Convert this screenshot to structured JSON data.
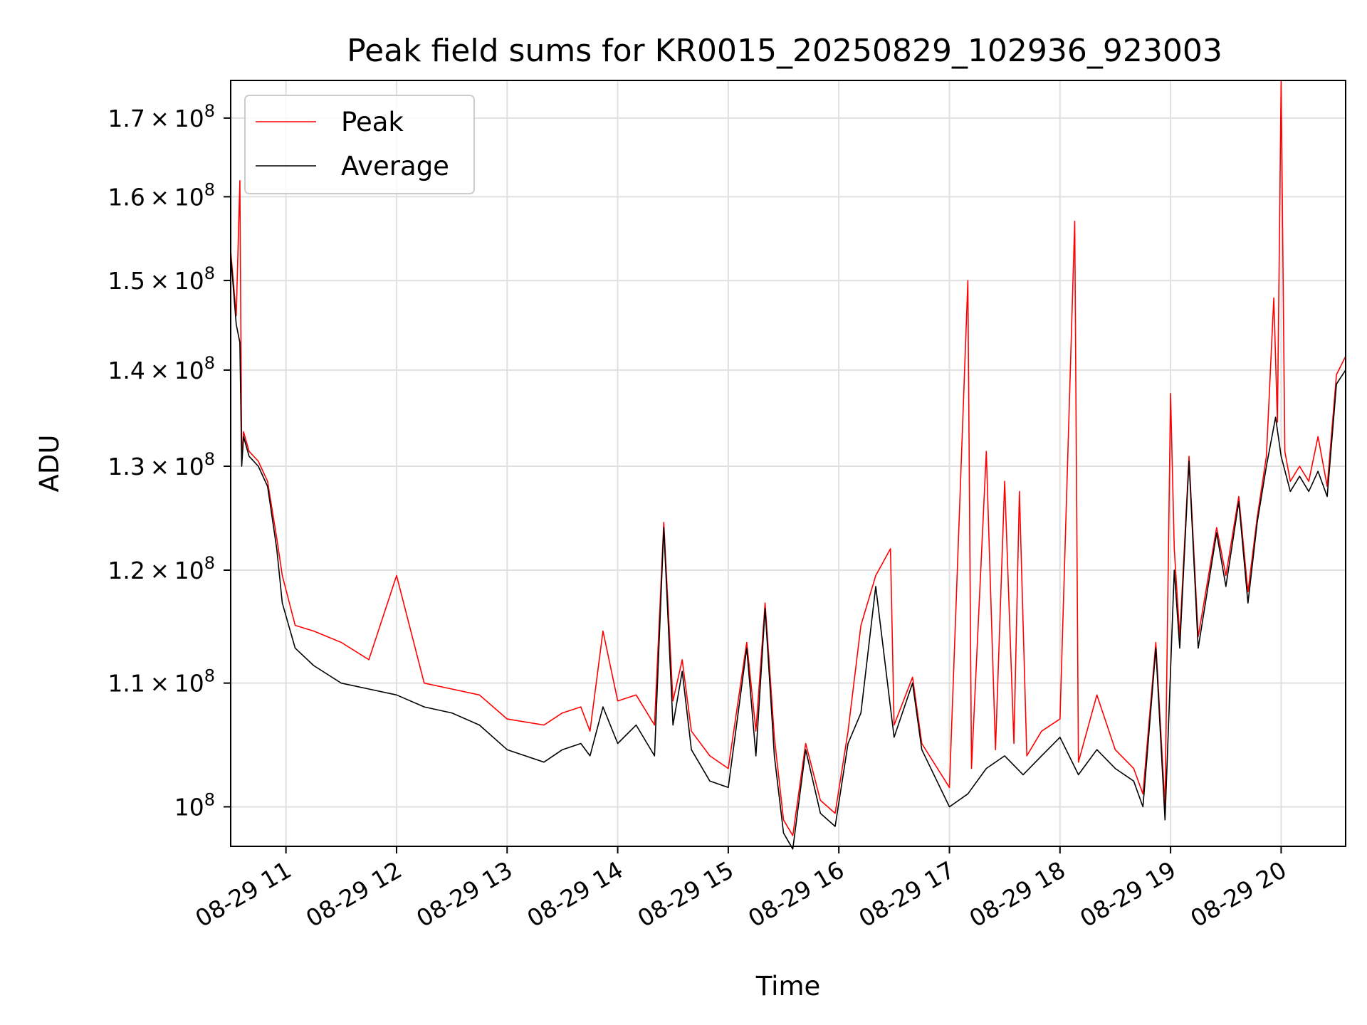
{
  "chart_data": {
    "type": "line",
    "title": "Peak field sums for KR0015_20250829_102936_923003",
    "xlabel": "Time",
    "ylabel": "ADU",
    "y_scale": "log",
    "grid": true,
    "legend_placement": "top-left",
    "xlim": [
      "2025-08-29 10:30",
      "2025-08-29 20:35"
    ],
    "ylim": [
      97000000,
      175000000
    ],
    "x_tick_labels": [
      "08-29 11",
      "08-29 12",
      "08-29 13",
      "08-29 14",
      "08-29 15",
      "08-29 16",
      "08-29 17",
      "08-29 18",
      "08-29 19",
      "08-29 20"
    ],
    "x_ticks": [
      "2025-08-29 11:00",
      "2025-08-29 12:00",
      "2025-08-29 13:00",
      "2025-08-29 14:00",
      "2025-08-29 15:00",
      "2025-08-29 16:00",
      "2025-08-29 17:00",
      "2025-08-29 18:00",
      "2025-08-29 19:00",
      "2025-08-29 20:00"
    ],
    "y_ticks": [
      100000000,
      110000000,
      120000000,
      130000000,
      140000000,
      150000000,
      160000000,
      170000000
    ],
    "y_tick_labels": [
      {
        "mantissa": "",
        "exponent": "8"
      },
      {
        "mantissa": "1.1",
        "exponent": "8"
      },
      {
        "mantissa": "1.2",
        "exponent": "8"
      },
      {
        "mantissa": "1.3",
        "exponent": "8"
      },
      {
        "mantissa": "1.4",
        "exponent": "8"
      },
      {
        "mantissa": "1.5",
        "exponent": "8"
      },
      {
        "mantissa": "1.6",
        "exponent": "8"
      },
      {
        "mantissa": "1.7",
        "exponent": "8"
      }
    ],
    "series": [
      {
        "name": "Average",
        "color": "#000000",
        "points": [
          [
            "2025-08-29 10:30",
            153000000
          ],
          [
            "2025-08-29 10:33",
            145000000
          ],
          [
            "2025-08-29 10:35",
            143000000
          ],
          [
            "2025-08-29 10:36",
            130000000
          ],
          [
            "2025-08-29 10:37",
            133000000
          ],
          [
            "2025-08-29 10:40",
            131000000
          ],
          [
            "2025-08-29 10:45",
            130000000
          ],
          [
            "2025-08-29 10:50",
            128000000
          ],
          [
            "2025-08-29 10:55",
            122000000
          ],
          [
            "2025-08-29 10:58",
            117000000
          ],
          [
            "2025-08-29 11:05",
            113000000
          ],
          [
            "2025-08-29 11:15",
            111500000
          ],
          [
            "2025-08-29 11:30",
            110000000
          ],
          [
            "2025-08-29 11:45",
            109500000
          ],
          [
            "2025-08-29 12:00",
            109000000
          ],
          [
            "2025-08-29 12:15",
            108000000
          ],
          [
            "2025-08-29 12:30",
            107500000
          ],
          [
            "2025-08-29 12:45",
            106500000
          ],
          [
            "2025-08-29 13:00",
            104500000
          ],
          [
            "2025-08-29 13:20",
            103500000
          ],
          [
            "2025-08-29 13:30",
            104500000
          ],
          [
            "2025-08-29 13:40",
            105000000
          ],
          [
            "2025-08-29 13:45",
            104000000
          ],
          [
            "2025-08-29 13:52",
            108000000
          ],
          [
            "2025-08-29 14:00",
            105000000
          ],
          [
            "2025-08-29 14:10",
            106500000
          ],
          [
            "2025-08-29 14:20",
            104000000
          ],
          [
            "2025-08-29 14:25",
            124000000
          ],
          [
            "2025-08-29 14:30",
            106500000
          ],
          [
            "2025-08-29 14:35",
            111000000
          ],
          [
            "2025-08-29 14:40",
            104500000
          ],
          [
            "2025-08-29 14:50",
            102000000
          ],
          [
            "2025-08-29 15:00",
            101500000
          ],
          [
            "2025-08-29 15:10",
            113000000
          ],
          [
            "2025-08-29 15:15",
            104000000
          ],
          [
            "2025-08-29 15:20",
            116500000
          ],
          [
            "2025-08-29 15:25",
            104000000
          ],
          [
            "2025-08-29 15:30",
            98000000
          ],
          [
            "2025-08-29 15:35",
            96800000
          ],
          [
            "2025-08-29 15:42",
            104500000
          ],
          [
            "2025-08-29 15:50",
            99500000
          ],
          [
            "2025-08-29 15:58",
            98500000
          ],
          [
            "2025-08-29 16:05",
            105000000
          ],
          [
            "2025-08-29 16:12",
            107500000
          ],
          [
            "2025-08-29 16:20",
            118500000
          ],
          [
            "2025-08-29 16:30",
            105500000
          ],
          [
            "2025-08-29 16:40",
            110000000
          ],
          [
            "2025-08-29 16:45",
            104500000
          ],
          [
            "2025-08-29 17:00",
            100000000
          ],
          [
            "2025-08-29 17:10",
            101000000
          ],
          [
            "2025-08-29 17:20",
            103000000
          ],
          [
            "2025-08-29 17:30",
            104000000
          ],
          [
            "2025-08-29 17:40",
            102500000
          ],
          [
            "2025-08-29 17:50",
            104000000
          ],
          [
            "2025-08-29 18:00",
            105500000
          ],
          [
            "2025-08-29 18:10",
            102500000
          ],
          [
            "2025-08-29 18:20",
            104500000
          ],
          [
            "2025-08-29 18:30",
            103000000
          ],
          [
            "2025-08-29 18:40",
            102000000
          ],
          [
            "2025-08-29 18:45",
            100000000
          ],
          [
            "2025-08-29 18:52",
            113000000
          ],
          [
            "2025-08-29 18:57",
            99000000
          ],
          [
            "2025-08-29 19:02",
            120000000
          ],
          [
            "2025-08-29 19:05",
            113000000
          ],
          [
            "2025-08-29 19:10",
            130500000
          ],
          [
            "2025-08-29 19:15",
            113000000
          ],
          [
            "2025-08-29 19:25",
            123500000
          ],
          [
            "2025-08-29 19:30",
            118500000
          ],
          [
            "2025-08-29 19:37",
            126500000
          ],
          [
            "2025-08-29 19:42",
            117000000
          ],
          [
            "2025-08-29 19:47",
            124500000
          ],
          [
            "2025-08-29 19:52",
            130000000
          ],
          [
            "2025-08-29 19:57",
            135000000
          ],
          [
            "2025-08-29 20:00",
            131000000
          ],
          [
            "2025-08-29 20:05",
            127500000
          ],
          [
            "2025-08-29 20:10",
            129000000
          ],
          [
            "2025-08-29 20:15",
            127500000
          ],
          [
            "2025-08-29 20:20",
            129500000
          ],
          [
            "2025-08-29 20:25",
            127000000
          ],
          [
            "2025-08-29 20:30",
            138500000
          ],
          [
            "2025-08-29 20:35",
            140000000
          ]
        ]
      },
      {
        "name": "Peak",
        "color": "#ff0000",
        "points": [
          [
            "2025-08-29 10:30",
            153500000
          ],
          [
            "2025-08-29 10:33",
            146000000
          ],
          [
            "2025-08-29 10:35",
            162000000
          ],
          [
            "2025-08-29 10:36",
            131000000
          ],
          [
            "2025-08-29 10:37",
            133500000
          ],
          [
            "2025-08-29 10:40",
            131500000
          ],
          [
            "2025-08-29 10:45",
            130500000
          ],
          [
            "2025-08-29 10:50",
            128500000
          ],
          [
            "2025-08-29 10:55",
            123000000
          ],
          [
            "2025-08-29 10:58",
            119500000
          ],
          [
            "2025-08-29 11:05",
            115000000
          ],
          [
            "2025-08-29 11:15",
            114500000
          ],
          [
            "2025-08-29 11:30",
            113500000
          ],
          [
            "2025-08-29 11:45",
            112000000
          ],
          [
            "2025-08-29 12:00",
            119500000
          ],
          [
            "2025-08-29 12:15",
            110000000
          ],
          [
            "2025-08-29 12:30",
            109500000
          ],
          [
            "2025-08-29 12:45",
            109000000
          ],
          [
            "2025-08-29 13:00",
            107000000
          ],
          [
            "2025-08-29 13:20",
            106500000
          ],
          [
            "2025-08-29 13:30",
            107500000
          ],
          [
            "2025-08-29 13:40",
            108000000
          ],
          [
            "2025-08-29 13:45",
            106000000
          ],
          [
            "2025-08-29 13:52",
            114500000
          ],
          [
            "2025-08-29 14:00",
            108500000
          ],
          [
            "2025-08-29 14:10",
            109000000
          ],
          [
            "2025-08-29 14:20",
            106500000
          ],
          [
            "2025-08-29 14:25",
            124500000
          ],
          [
            "2025-08-29 14:30",
            108500000
          ],
          [
            "2025-08-29 14:35",
            112000000
          ],
          [
            "2025-08-29 14:40",
            106000000
          ],
          [
            "2025-08-29 14:50",
            104000000
          ],
          [
            "2025-08-29 15:00",
            103000000
          ],
          [
            "2025-08-29 15:10",
            113500000
          ],
          [
            "2025-08-29 15:15",
            106000000
          ],
          [
            "2025-08-29 15:20",
            117000000
          ],
          [
            "2025-08-29 15:25",
            105500000
          ],
          [
            "2025-08-29 15:30",
            99000000
          ],
          [
            "2025-08-29 15:35",
            97800000
          ],
          [
            "2025-08-29 15:42",
            105000000
          ],
          [
            "2025-08-29 15:50",
            100500000
          ],
          [
            "2025-08-29 15:58",
            99500000
          ],
          [
            "2025-08-29 16:05",
            106000000
          ],
          [
            "2025-08-29 16:12",
            115000000
          ],
          [
            "2025-08-29 16:20",
            119500000
          ],
          [
            "2025-08-29 16:28",
            122000000
          ],
          [
            "2025-08-29 16:30",
            106500000
          ],
          [
            "2025-08-29 16:40",
            110500000
          ],
          [
            "2025-08-29 16:45",
            105000000
          ],
          [
            "2025-08-29 17:00",
            101500000
          ],
          [
            "2025-08-29 17:10",
            150000000
          ],
          [
            "2025-08-29 17:12",
            103000000
          ],
          [
            "2025-08-29 17:20",
            131500000
          ],
          [
            "2025-08-29 17:25",
            104500000
          ],
          [
            "2025-08-29 17:30",
            128500000
          ],
          [
            "2025-08-29 17:35",
            105000000
          ],
          [
            "2025-08-29 17:38",
            127500000
          ],
          [
            "2025-08-29 17:42",
            104000000
          ],
          [
            "2025-08-29 17:50",
            106000000
          ],
          [
            "2025-08-29 18:00",
            107000000
          ],
          [
            "2025-08-29 18:08",
            157000000
          ],
          [
            "2025-08-29 18:10",
            103500000
          ],
          [
            "2025-08-29 18:20",
            109000000
          ],
          [
            "2025-08-29 18:30",
            104500000
          ],
          [
            "2025-08-29 18:40",
            103000000
          ],
          [
            "2025-08-29 18:45",
            101000000
          ],
          [
            "2025-08-29 18:52",
            113500000
          ],
          [
            "2025-08-29 18:57",
            100000000
          ],
          [
            "2025-08-29 19:00",
            137500000
          ],
          [
            "2025-08-29 19:02",
            122000000
          ],
          [
            "2025-08-29 19:05",
            114000000
          ],
          [
            "2025-08-29 19:10",
            131000000
          ],
          [
            "2025-08-29 19:15",
            114000000
          ],
          [
            "2025-08-29 19:25",
            124000000
          ],
          [
            "2025-08-29 19:30",
            119500000
          ],
          [
            "2025-08-29 19:37",
            127000000
          ],
          [
            "2025-08-29 19:42",
            118000000
          ],
          [
            "2025-08-29 19:47",
            125000000
          ],
          [
            "2025-08-29 19:52",
            131000000
          ],
          [
            "2025-08-29 19:56",
            148000000
          ],
          [
            "2025-08-29 19:58",
            134500000
          ],
          [
            "2025-08-29 20:00",
            175000000
          ],
          [
            "2025-08-29 20:02",
            131500000
          ],
          [
            "2025-08-29 20:05",
            128500000
          ],
          [
            "2025-08-29 20:10",
            130000000
          ],
          [
            "2025-08-29 20:15",
            128500000
          ],
          [
            "2025-08-29 20:20",
            133000000
          ],
          [
            "2025-08-29 20:25",
            128000000
          ],
          [
            "2025-08-29 20:30",
            139500000
          ],
          [
            "2025-08-29 20:35",
            141500000
          ]
        ]
      }
    ],
    "legend": [
      {
        "label": "Peak",
        "color": "#ff0000"
      },
      {
        "label": "Average",
        "color": "#000000"
      }
    ]
  }
}
